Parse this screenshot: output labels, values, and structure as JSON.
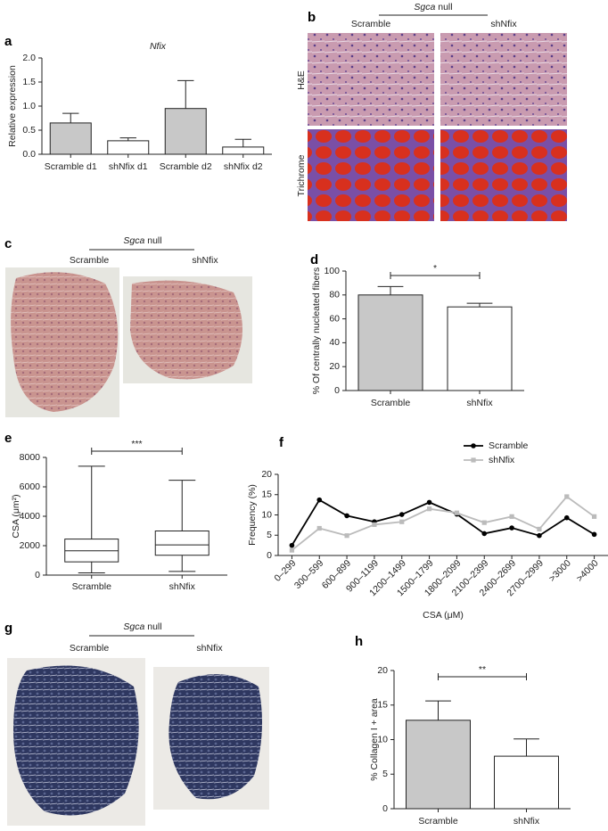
{
  "chart_data": [
    {
      "panel": "a",
      "type": "bar",
      "title": "Nfix",
      "ylabel": "Relative expression",
      "categories": [
        "Scramble d1",
        "shNfix d1",
        "Scramble d2",
        "shNfix d2"
      ],
      "values": [
        0.65,
        0.28,
        0.95,
        0.15
      ],
      "errors": [
        0.2,
        0.06,
        0.58,
        0.16
      ],
      "colors": [
        "#c8c8c8",
        "#ffffff",
        "#c8c8c8",
        "#ffffff"
      ],
      "ylim": [
        0,
        2
      ],
      "yticks": [
        {
          "value": 0,
          "label": "0.0"
        },
        0.5,
        {
          "value": 1,
          "label": "1.0"
        },
        1.5,
        {
          "value": 2,
          "label": "2.0"
        }
      ]
    },
    {
      "panel": "d",
      "type": "bar",
      "ylabel": "% Of centrally nucleated fibers",
      "categories": [
        "Scramble",
        "shNfix"
      ],
      "values": [
        80,
        70
      ],
      "errors": [
        7,
        3
      ],
      "colors": [
        "#c8c8c8",
        "#ffffff"
      ],
      "ylim": [
        0,
        100
      ],
      "yticks": [
        0,
        20,
        40,
        60,
        80,
        100
      ],
      "significance": "*"
    },
    {
      "panel": "e",
      "type": "box",
      "ylabel": "CSA (μm²)",
      "categories": [
        "Scramble",
        "shNfix"
      ],
      "boxes": [
        {
          "min": 150,
          "q1": 900,
          "median": 1650,
          "q3": 2450,
          "max": 7400
        },
        {
          "min": 250,
          "q1": 1350,
          "median": 2050,
          "q3": 3000,
          "max": 6450
        }
      ],
      "ylim": [
        0,
        8000
      ],
      "yticks": [
        0,
        2000,
        4000,
        6000,
        8000
      ],
      "significance": "***"
    },
    {
      "panel": "f",
      "type": "line",
      "xlabel": "CSA (μM)",
      "ylabel": "Frequency (%)",
      "categories": [
        "0–299",
        "300–599",
        "600–899",
        "900–1199",
        "1200–1499",
        "1500–1799",
        "1800–2099",
        "2100–2399",
        "2400–2699",
        "2700–2999",
        ">3000",
        ">4000"
      ],
      "series": [
        {
          "name": "Scramble",
          "color": "#000000",
          "marker": "circle",
          "values": [
            2.5,
            13.7,
            9.8,
            8.3,
            10.1,
            13.1,
            10.2,
            5.4,
            6.8,
            4.9,
            9.3,
            5.2
          ]
        },
        {
          "name": "shNfix",
          "color": "#bbbbbb",
          "marker": "square",
          "values": [
            1.3,
            6.7,
            4.9,
            7.6,
            8.3,
            11.5,
            10.5,
            8.1,
            9.6,
            6.5,
            14.5,
            9.6
          ]
        }
      ],
      "ylim": [
        0,
        20
      ],
      "yticks": [
        0,
        5,
        10,
        15,
        20
      ],
      "legend": "upper right"
    },
    {
      "panel": "h",
      "type": "bar",
      "ylabel": "% Collagen I + area",
      "categories": [
        "Scramble",
        "shNfix"
      ],
      "values": [
        12.8,
        7.6
      ],
      "errors": [
        2.8,
        2.5
      ],
      "colors": [
        "#c8c8c8",
        "#ffffff"
      ],
      "ylim": [
        0,
        20
      ],
      "yticks": [
        0,
        5,
        10,
        15,
        20
      ],
      "significance": "**"
    }
  ],
  "image_panels": [
    {
      "panel": "b",
      "header": {
        "gene": "Sgca",
        "suffix": "null"
      },
      "columns": [
        "Scramble",
        "shNfix"
      ],
      "rows": [
        "H&E",
        "Trichrome"
      ]
    },
    {
      "panel": "c",
      "header": {
        "gene": "Sgca",
        "suffix": "null"
      },
      "columns": [
        "Scramble",
        "shNfix"
      ]
    },
    {
      "panel": "g",
      "header": {
        "gene": "Sgca",
        "suffix": "null"
      },
      "columns": [
        "Scramble",
        "shNfix"
      ]
    }
  ]
}
